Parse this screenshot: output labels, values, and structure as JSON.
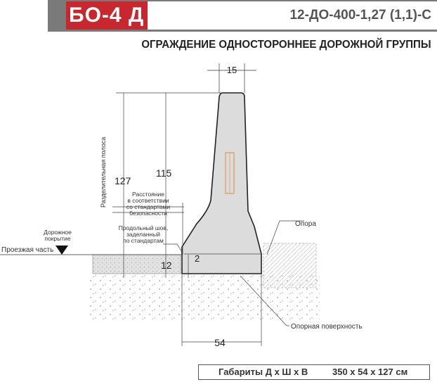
{
  "header": {
    "product_code": "БО-4 Д",
    "standard_code": "12-ДО-400-1,27 (1,1)-С"
  },
  "subtitle": "ОГРАЖДЕНИЕ ОДНОСТОРОННЕЕ ДОРОЖНОЙ ГРУППЫ",
  "drawing": {
    "dimensions": {
      "top_width": "15",
      "total_height": "127",
      "barrier_height": "115",
      "base_width": "54",
      "base_height": "12",
      "gap": "2"
    },
    "labels": {
      "separator_strip": "Разделительная полоса",
      "distance_1": "Расстояние",
      "distance_2": "в соответствии",
      "distance_3": "со стандартами",
      "distance_4": "безопасности",
      "seam_1": "Продольный шов,",
      "seam_2": "заделанный",
      "seam_3": "по стандартам",
      "road_surface_1": "Дорожное",
      "road_surface_2": "покрытие",
      "roadway": "Проезжая часть",
      "support": "Опора",
      "bearing_surface": "Опорная поверхность"
    }
  },
  "dimensions_box": {
    "label": "Габариты  Д х Ш х В",
    "value": "350 х 54 х 127 см"
  }
}
